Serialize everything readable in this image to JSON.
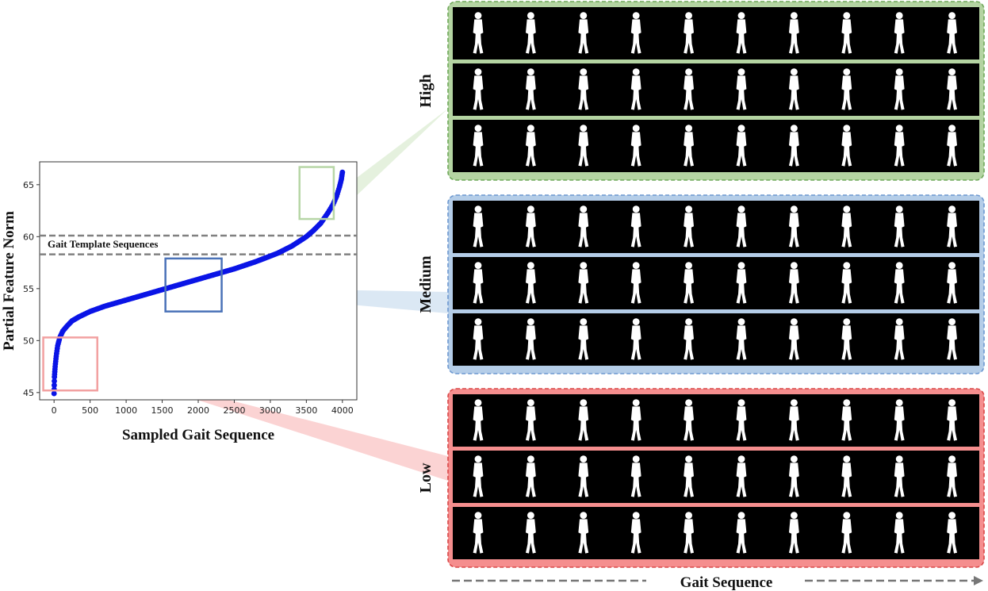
{
  "chart_data": {
    "type": "scatter",
    "xlabel": "Sampled Gait Sequence",
    "ylabel": "Partial Feature Norm",
    "xlim": [
      -200,
      4200
    ],
    "ylim": [
      44.3,
      67.2
    ],
    "xticks": [
      0,
      500,
      1000,
      1500,
      2000,
      2500,
      3000,
      3500,
      4000
    ],
    "yticks": [
      45,
      50,
      55,
      60,
      65
    ],
    "series_color": "#0a14e6",
    "curve": {
      "x": [
        0,
        5,
        15,
        30,
        50,
        80,
        120,
        180,
        250,
        350,
        500,
        700,
        1000,
        1300,
        1600,
        1900,
        2200,
        2500,
        2800,
        3100,
        3300,
        3500,
        3600,
        3700,
        3800,
        3870,
        3920,
        3960,
        3985,
        4000
      ],
      "y": [
        44.9,
        46.5,
        47.5,
        48.5,
        49.5,
        50.3,
        50.9,
        51.4,
        51.9,
        52.3,
        52.8,
        53.3,
        53.9,
        54.5,
        55.1,
        55.7,
        56.3,
        56.9,
        57.6,
        58.4,
        59.1,
        60.0,
        60.6,
        61.3,
        62.3,
        63.1,
        63.9,
        64.8,
        65.5,
        66.2
      ]
    },
    "reference_lines": [
      {
        "y": 60.1,
        "style": "dashed",
        "color": "#808080"
      },
      {
        "y": 58.3,
        "style": "dashed",
        "color": "#808080"
      }
    ],
    "annotation": "Gait Template Sequences",
    "highlight_boxes": [
      {
        "level": "High",
        "x": [
          3405,
          3880
        ],
        "y": [
          61.7,
          66.7
        ],
        "color": "#b7d6a6"
      },
      {
        "level": "Medium",
        "x": [
          1545,
          2325
        ],
        "y": [
          52.8,
          57.9
        ],
        "color": "#4a72b8"
      },
      {
        "level": "Low",
        "x": [
          -150,
          600
        ],
        "y": [
          45.2,
          50.3
        ],
        "color": "#f2a0a0"
      }
    ]
  },
  "panels": [
    {
      "label": "High",
      "bg": "#b4d4a2",
      "border": "#6fa85a"
    },
    {
      "label": "Medium",
      "bg": "#b4cde8",
      "border": "#6d98d0"
    },
    {
      "label": "Low",
      "bg": "#f58e8e",
      "border": "#d94848"
    }
  ],
  "footer_label": "Gait Sequence"
}
